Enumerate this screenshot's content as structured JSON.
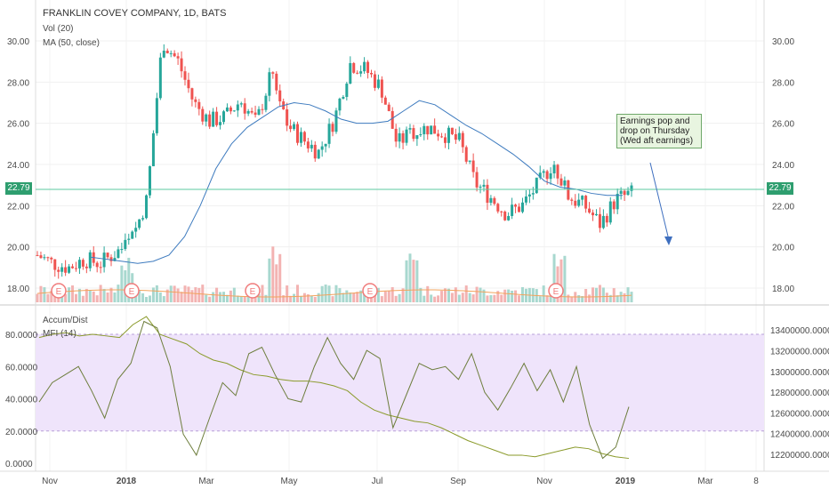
{
  "header": {
    "title": "FRANKLIN COVEY COMPANY, 1D, BATS",
    "vol_label": "Vol (20)",
    "ma_label": "MA (50, close)",
    "accum_label": "Accum/Dist",
    "mfi_label": "MFI (14)"
  },
  "annotation": {
    "text": "Earnings pop and drop on Thursday (Wed aft earnings)"
  },
  "last_price": "22.79",
  "colors": {
    "up": "#26a69a",
    "down": "#ef5350",
    "ma": "#3e7bbf",
    "vol_ma": "#f2a35c",
    "accum": "#6a7f2a",
    "mfi": "#8a8f3a",
    "mfi_band": "#efe4fb",
    "price_line": "#5ec9a0",
    "annotation_arrow": "#3e6fbf",
    "earnings": "#f07b7b"
  },
  "chart_data": [
    {
      "type": "candlestick",
      "title": "FRANKLIN COVEY COMPANY, 1D, BATS",
      "x_tick_labels": [
        "Nov",
        "2018",
        "Mar",
        "May",
        "Jul",
        "Sep",
        "Nov",
        "2019",
        "Mar",
        "8"
      ],
      "y_tick_labels": [
        "18.00",
        "20.00",
        "22.00",
        "24.00",
        "26.00",
        "28.00",
        "30.00"
      ],
      "ylim": [
        17.3,
        31.8
      ],
      "grid": true,
      "series": [
        {
          "name": "MA (50, close)",
          "values": [
            19.5,
            19.4,
            19.3,
            19.2,
            19.3,
            19.6,
            20.5,
            22.0,
            23.8,
            25.0,
            25.8,
            26.3,
            26.8,
            27.0,
            26.9,
            26.6,
            26.2,
            26.0,
            26.0,
            26.1,
            26.6,
            27.1,
            26.9,
            26.4,
            25.9,
            25.5,
            25.0,
            24.5,
            23.9,
            23.2,
            22.9,
            22.8,
            22.6,
            22.5,
            22.5
          ]
        }
      ],
      "closes": [
        19.6,
        19.2,
        19.0,
        19.4,
        19.2,
        19.7,
        20.3,
        22.3,
        30.0,
        29.0,
        27.0,
        26.1,
        26.3,
        27.1,
        26.0,
        28.5,
        25.9,
        25.2,
        24.6,
        26.2,
        28.9,
        28.6,
        27.7,
        25.0,
        25.6,
        25.8,
        25.5,
        25.1,
        23.1,
        22.4,
        21.6,
        22.0,
        23.0,
        24.1,
        22.4,
        22.0,
        21.1,
        22.3,
        22.6
      ],
      "volume_spikes_x": [
        0.15,
        0.4,
        0.63,
        0.88
      ],
      "earnings_markers": [
        "E",
        "E",
        "E",
        "E",
        "E"
      ]
    },
    {
      "type": "line",
      "title": "Accum/Dist, MFI (14)",
      "y_left_tick_labels": [
        "0.0000",
        "20.0000",
        "40.0000",
        "60.0000",
        "80.0000"
      ],
      "y_right_tick_labels": [
        "12200000.0000",
        "12400000.0000",
        "12600000.0000",
        "12800000.0000",
        "13000000.0000",
        "13200000.0000",
        "13400000.0000"
      ],
      "ylim_left": [
        -3,
        92
      ],
      "mfi_band": [
        20,
        80
      ],
      "series": [
        {
          "name": "Accum/Dist",
          "values": [
            78,
            80,
            81,
            79,
            80,
            79,
            78,
            86,
            91,
            80,
            77,
            74,
            68,
            64,
            62,
            58,
            55,
            54,
            52,
            51,
            51,
            50,
            48,
            45,
            38,
            33,
            30,
            28,
            26,
            25,
            22,
            18,
            14,
            11,
            8,
            5,
            5,
            4,
            6,
            8,
            10,
            9,
            6,
            4,
            3
          ]
        },
        {
          "name": "MFI (14)",
          "values": [
            38,
            50,
            55,
            60,
            45,
            28,
            52,
            62,
            88,
            84,
            60,
            18,
            5,
            28,
            50,
            42,
            68,
            72,
            55,
            40,
            38,
            60,
            78,
            62,
            52,
            70,
            65,
            22,
            42,
            62,
            58,
            60,
            52,
            68,
            44,
            33,
            47,
            62,
            45,
            58,
            38,
            60,
            24,
            3,
            10,
            35
          ]
        }
      ]
    }
  ]
}
